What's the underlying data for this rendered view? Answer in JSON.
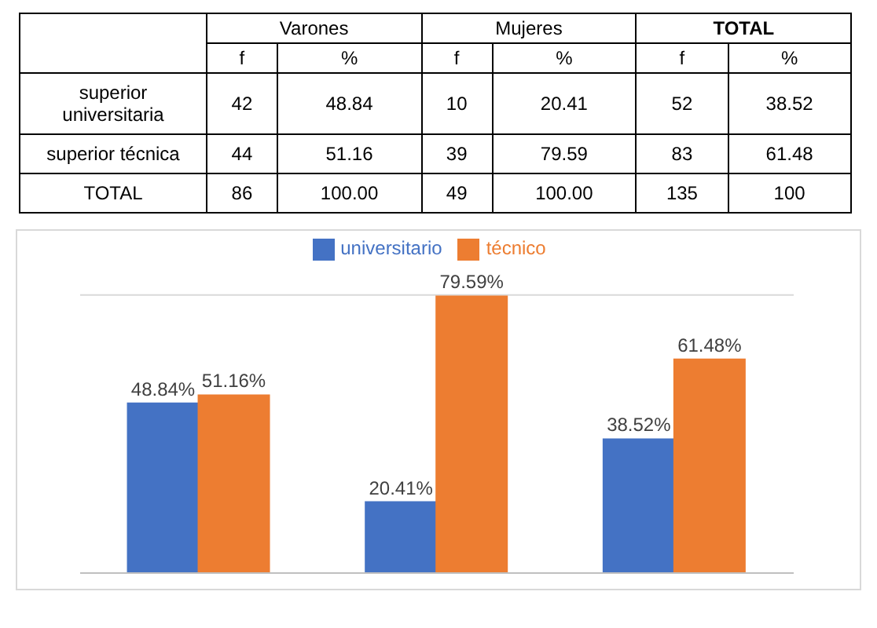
{
  "chart_data": [
    {
      "type": "other",
      "categories": [
        "Varones",
        "Mujeres",
        "TOTAL"
      ],
      "y_categories": [
        null,
        "superior universitaria",
        "superior técnica",
        "TOTAL"
      ],
      "cell_labels": [
        [
          "f",
          "%",
          "f",
          "%",
          "f",
          "%"
        ],
        [
          "42",
          "48.84",
          "10",
          "20.41",
          "52",
          "38.52"
        ],
        [
          "44",
          "51.16",
          "39",
          "79.59",
          "83",
          "61.48"
        ],
        [
          "86",
          "100.00",
          "49",
          "100.00",
          "135",
          "100"
        ]
      ]
    },
    {
      "type": "bar",
      "categories": [
        null,
        null,
        null
      ],
      "ylim": [
        0,
        80
      ],
      "grid": "y",
      "legend": "top",
      "series": [
        {
          "name": "universitario",
          "color": "#4472c4",
          "values": [
            48.84,
            20.41,
            38.52
          ],
          "value_labels": [
            "48.84%",
            "20.41%",
            "38.52%"
          ]
        },
        {
          "name": "técnico",
          "color": "#ed7d31",
          "values": [
            51.16,
            79.59,
            61.48
          ],
          "value_labels": [
            "51.16%",
            "79.59%",
            "61.48%"
          ]
        }
      ]
    }
  ]
}
